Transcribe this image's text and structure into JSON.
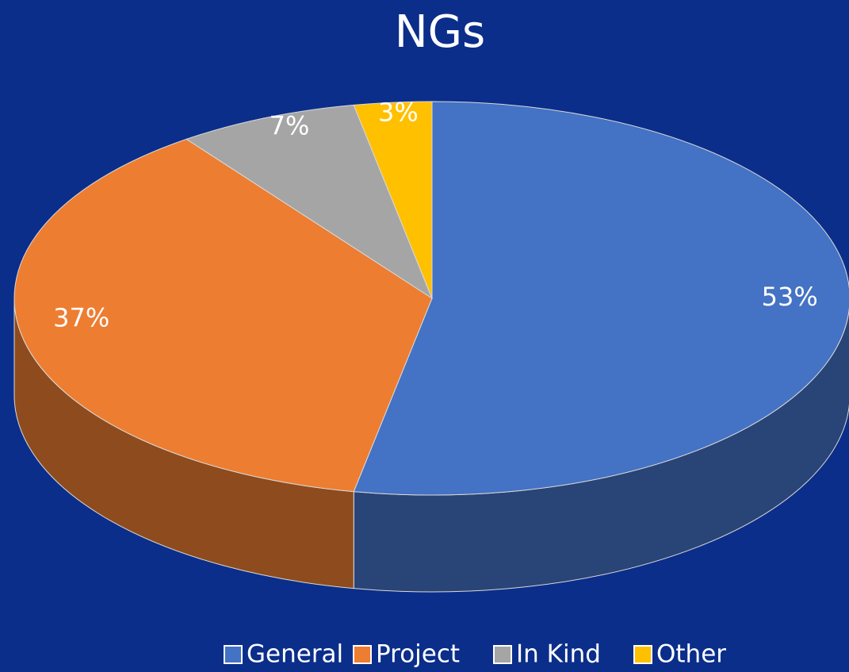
{
  "chart_data": {
    "type": "pie",
    "title": "NGs",
    "categories": [
      "General",
      "Project",
      "In Kind",
      "Other"
    ],
    "values": [
      53,
      37,
      7,
      3
    ],
    "value_labels": [
      "53%",
      "37%",
      "7%",
      "3%"
    ],
    "colors": [
      "#4472c4",
      "#ed7d31",
      "#a5a5a5",
      "#ffc000"
    ],
    "legend": "bottom"
  }
}
